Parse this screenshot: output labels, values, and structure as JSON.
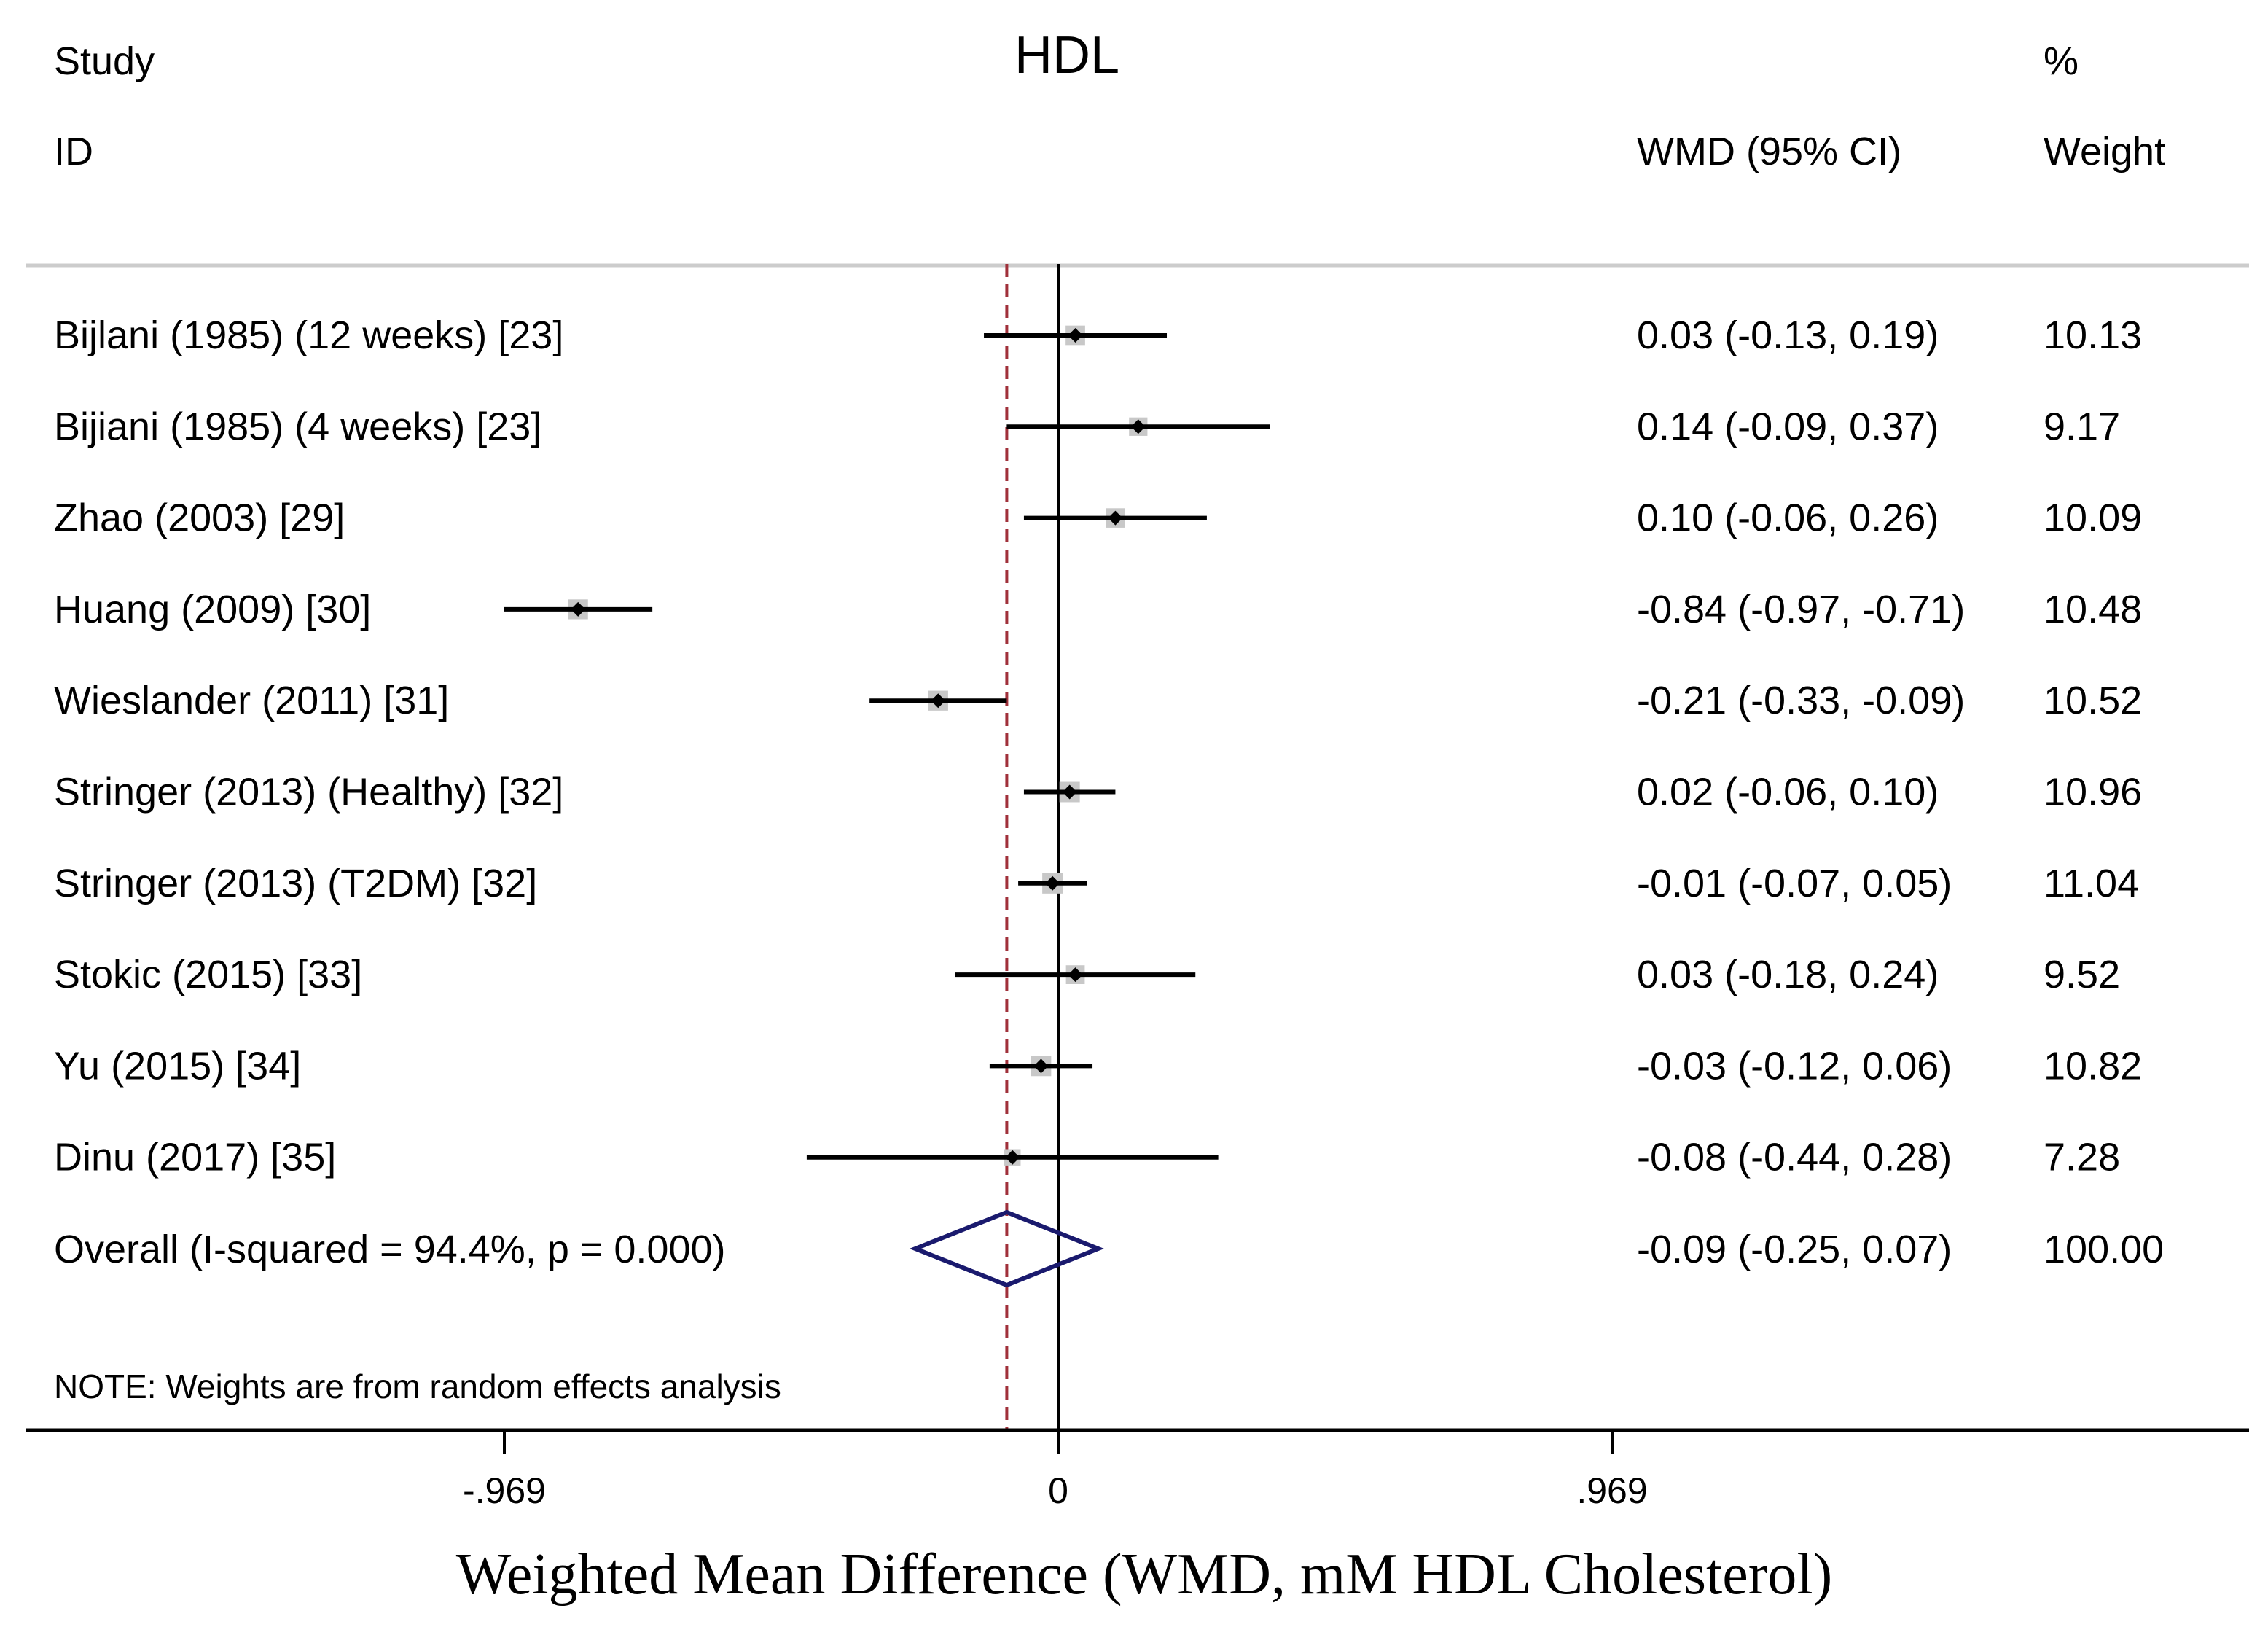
{
  "chart_data": {
    "type": "forest",
    "title": "HDL",
    "columns": {
      "study_header_line1": "Study",
      "study_header_line2": "ID",
      "effect_header": "WMD (95% CI)",
      "weight_header_line1": "%",
      "weight_header_line2": "Weight"
    },
    "studies": [
      {
        "label": "Bijlani (1985) (12 weeks) [23]",
        "wmd": 0.03,
        "lo": -0.13,
        "hi": 0.19,
        "ci_text": "0.03 (-0.13, 0.19)",
        "weight": 10.13,
        "weight_text": "10.13"
      },
      {
        "label": "Bijiani (1985) (4 weeks) [23]",
        "wmd": 0.14,
        "lo": -0.09,
        "hi": 0.37,
        "ci_text": "0.14 (-0.09, 0.37)",
        "weight": 9.17,
        "weight_text": "9.17"
      },
      {
        "label": "Zhao (2003) [29]",
        "wmd": 0.1,
        "lo": -0.06,
        "hi": 0.26,
        "ci_text": "0.10 (-0.06, 0.26)",
        "weight": 10.09,
        "weight_text": "10.09"
      },
      {
        "label": "Huang (2009) [30]",
        "wmd": -0.84,
        "lo": -0.97,
        "hi": -0.71,
        "ci_text": "-0.84 (-0.97, -0.71)",
        "weight": 10.48,
        "weight_text": "10.48"
      },
      {
        "label": "Wieslander (2011) [31]",
        "wmd": -0.21,
        "lo": -0.33,
        "hi": -0.09,
        "ci_text": "-0.21 (-0.33, -0.09)",
        "weight": 10.52,
        "weight_text": "10.52"
      },
      {
        "label": "Stringer (2013) (Healthy) [32]",
        "wmd": 0.02,
        "lo": -0.06,
        "hi": 0.1,
        "ci_text": "0.02 (-0.06, 0.10)",
        "weight": 10.96,
        "weight_text": "10.96"
      },
      {
        "label": "Stringer (2013) (T2DM) [32]",
        "wmd": -0.01,
        "lo": -0.07,
        "hi": 0.05,
        "ci_text": "-0.01 (-0.07, 0.05)",
        "weight": 11.04,
        "weight_text": "11.04"
      },
      {
        "label": "Stokic (2015) [33]",
        "wmd": 0.03,
        "lo": -0.18,
        "hi": 0.24,
        "ci_text": "0.03 (-0.18, 0.24)",
        "weight": 9.52,
        "weight_text": "9.52"
      },
      {
        "label": "Yu (2015) [34]",
        "wmd": -0.03,
        "lo": -0.12,
        "hi": 0.06,
        "ci_text": "-0.03 (-0.12, 0.06)",
        "weight": 10.82,
        "weight_text": "10.82"
      },
      {
        "label": "Dinu (2017) [35]",
        "wmd": -0.08,
        "lo": -0.44,
        "hi": 0.28,
        "ci_text": "-0.08 (-0.44, 0.28)",
        "weight": 7.28,
        "weight_text": "7.28"
      }
    ],
    "overall": {
      "label": "Overall  (I-squared = 94.4%, p = 0.000)",
      "wmd": -0.09,
      "lo": -0.25,
      "hi": 0.07,
      "ci_text": "-0.09 (-0.25, 0.07)",
      "weight_text": "100.00"
    },
    "note": "NOTE: Weights are from random effects analysis",
    "x_ticks": [
      {
        "value": -0.969,
        "label": "-.969"
      },
      {
        "value": 0,
        "label": "0"
      },
      {
        "value": 0.969,
        "label": ".969"
      }
    ],
    "xlabel": "Weighted Mean Difference (WMD, mM HDL Cholesterol)",
    "null_line": 0,
    "colors": {
      "ci_line": "#000000",
      "weight_box": "#c8c8c8",
      "point": "#000000",
      "diamond": "#1a1a6e",
      "overall_line": "#a0303a",
      "header_rule": "#cccccc"
    }
  }
}
